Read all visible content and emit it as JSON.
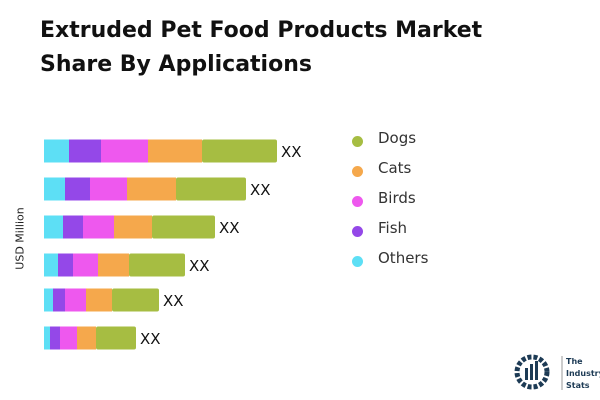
{
  "title": "Extruded Pet Food Products Market Share By Applications",
  "chart_data": {
    "type": "bar",
    "orientation": "horizontal",
    "stacked": true,
    "title": "Extruded Pet Food Products Market Share By Applications",
    "ylabel": "USD Million",
    "categories": [
      "",
      "",
      "",
      "",
      "",
      ""
    ],
    "data_labels": [
      "XX",
      "XX",
      "XX",
      "XX",
      "XX",
      "XX"
    ],
    "series": [
      {
        "name": "Others",
        "color": "#5ddff5",
        "values": [
          25,
          21,
          19,
          14,
          9,
          6
        ]
      },
      {
        "name": "Fish",
        "color": "#9448e8",
        "values": [
          32,
          25,
          20,
          15,
          12,
          10
        ]
      },
      {
        "name": "Birds",
        "color": "#ee58ee",
        "values": [
          47,
          37,
          31,
          25,
          21,
          17
        ]
      },
      {
        "name": "Cats",
        "color": "#f5a84c",
        "values": [
          54,
          49,
          38,
          31,
          26,
          19
        ]
      },
      {
        "name": "Dogs",
        "color": "#a6bd42",
        "values": [
          75,
          70,
          63,
          56,
          47,
          40
        ]
      }
    ],
    "legend_order": [
      "Dogs",
      "Cats",
      "Birds",
      "Fish",
      "Others"
    ],
    "legend_position": "right",
    "grid": false
  },
  "logo_text": "The Industry Stats"
}
